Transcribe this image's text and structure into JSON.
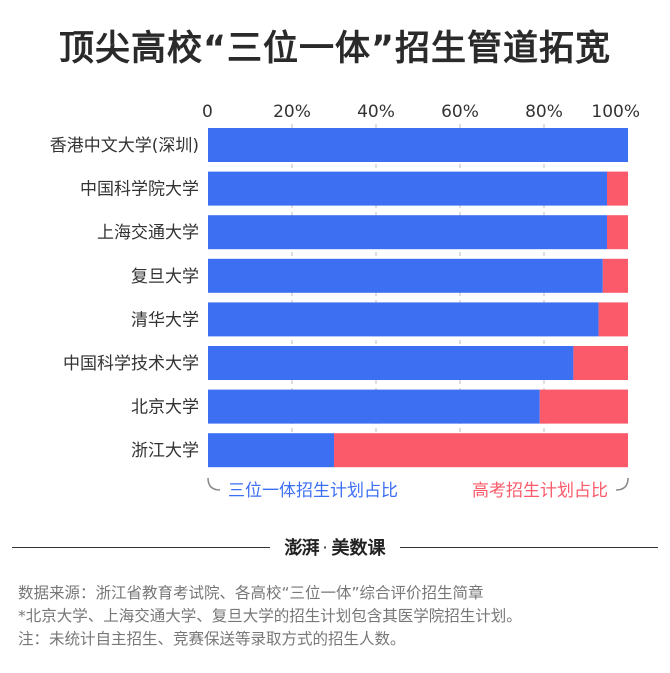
{
  "title": "顶尖高校“三位一体”招生管道拓宽",
  "chart_data": {
    "type": "bar",
    "stacked": true,
    "orientation": "horizontal",
    "xlim": [
      0,
      100
    ],
    "x_ticks": [
      "0",
      "20%",
      "40%",
      "60%",
      "80%",
      "100%"
    ],
    "categories": [
      "香港中文大学(深圳)",
      "中国科学院大学",
      "上海交通大学",
      "复旦大学",
      "清华大学",
      "中国科学技术大学",
      "北京大学",
      "浙江大学"
    ],
    "series": [
      {
        "name": "三位一体招生计划占比",
        "color": "#3d6ff2",
        "values": [
          100,
          95,
          95,
          94,
          93,
          87,
          79,
          30
        ]
      },
      {
        "name": "高考招生计划占比",
        "color": "#fb5a6a",
        "values": [
          0,
          5,
          5,
          6,
          7,
          13,
          21,
          70
        ]
      }
    ],
    "grid": true
  },
  "brand": {
    "logo": "澎湃",
    "name": "美数课"
  },
  "notes": [
    "数据来源：浙江省教育考试院、各高校“三位一体”综合评价招生简章",
    "*北京大学、上海交通大学、复旦大学的招生计划包含其医学院招生计划。",
    "注：未统计自主招生、竞赛保送等录取方式的招生人数。"
  ]
}
